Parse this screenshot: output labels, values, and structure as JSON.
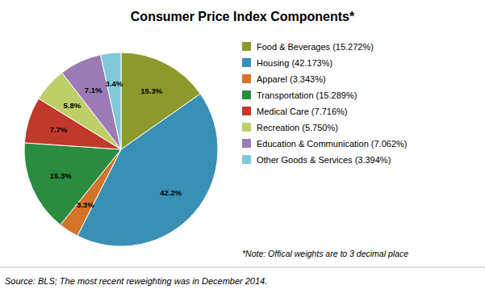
{
  "chart_data": {
    "type": "pie",
    "title": "Consumer Price Index Components*",
    "categories": [
      "Food & Beverages (15.272%)",
      "Housing (42.173%)",
      "Apparel (3.343%)",
      "Transportation (15.289%)",
      "Medical Care (7.716%)",
      "Recreation (5.750%)",
      "Education & Communication (7.062%)",
      "Other Goods & Services (3.394%)"
    ],
    "values": [
      15.272,
      42.173,
      3.343,
      15.289,
      7.716,
      5.75,
      7.062,
      3.394
    ],
    "value_labels": [
      "15.3%",
      "42.2%",
      "3.3%",
      "15.3%",
      "7.7%",
      "5.8%",
      "7.1%",
      "3.4%"
    ],
    "colors": [
      "#8B9A2A",
      "#3A8FB5",
      "#D4732A",
      "#2A8C3F",
      "#C0392B",
      "#BECF6A",
      "#9B7BB5",
      "#7EC8D8"
    ],
    "data_labels": true,
    "legend": "right",
    "annotations": [
      "*Note: Offical weights are to 3 decimal place",
      "Source: BLS; The most recent reweighting was in December 2014."
    ]
  }
}
